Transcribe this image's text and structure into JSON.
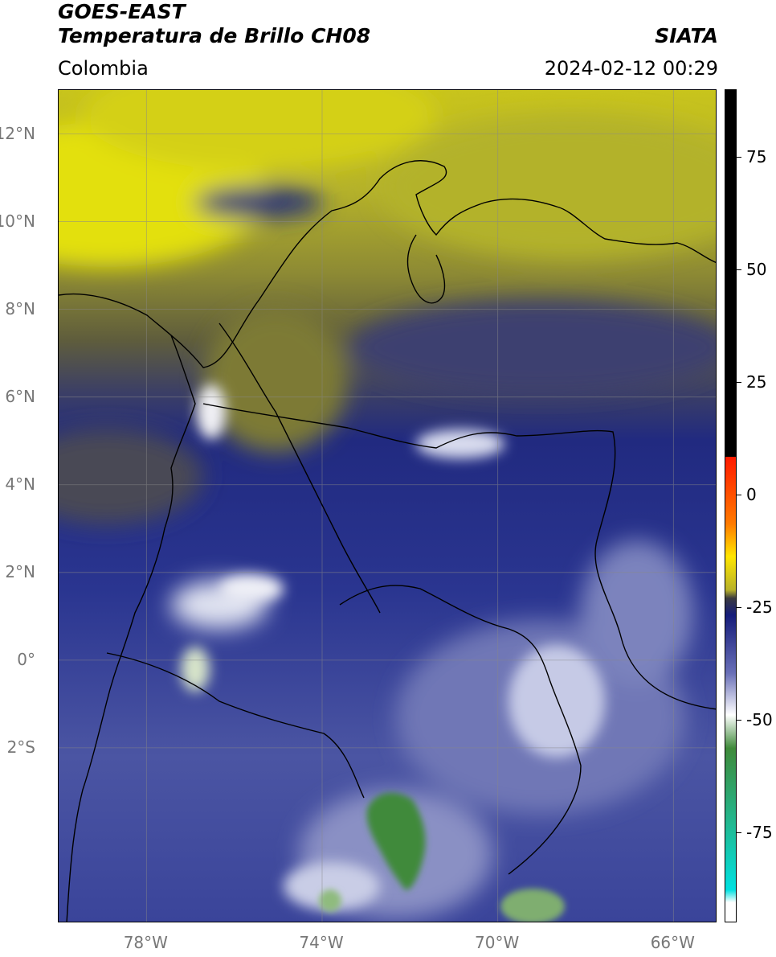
{
  "header": {
    "satellite": "GOES-EAST",
    "product": "Temperatura de Brillo CH08",
    "organization": "SIATA",
    "region": "Colombia",
    "datetime": "2024-02-12 00:29"
  },
  "map": {
    "lat_range": [
      -6,
      13
    ],
    "lon_range": [
      -80,
      -65
    ],
    "lat_ticks": [
      {
        "value": 12,
        "label": "12°N"
      },
      {
        "value": 10,
        "label": "10°N"
      },
      {
        "value": 8,
        "label": "8°N"
      },
      {
        "value": 6,
        "label": "6°N"
      },
      {
        "value": 4,
        "label": "4°N"
      },
      {
        "value": 2,
        "label": "2°N"
      },
      {
        "value": 0,
        "label": "0°"
      },
      {
        "value": -2,
        "label": "2°S"
      }
    ],
    "lon_ticks": [
      {
        "value": -78,
        "label": "78°W"
      },
      {
        "value": -74,
        "label": "74°W"
      },
      {
        "value": -70,
        "label": "70°W"
      },
      {
        "value": -66,
        "label": "66°W"
      }
    ],
    "colors": {
      "warm_yellow": "#c9c41f",
      "olive": "#6e6a32",
      "navy": "#1d2686",
      "cold_white": "#e8eaf4",
      "cold_green": "#3f8a3a"
    }
  },
  "colorbar": {
    "range": [
      -95,
      90
    ],
    "ticks": [
      {
        "value": 75,
        "label": "75"
      },
      {
        "value": 50,
        "label": "50"
      },
      {
        "value": 25,
        "label": "25"
      },
      {
        "value": 0,
        "label": "0"
      },
      {
        "value": -25,
        "label": "-25"
      },
      {
        "value": -50,
        "label": "-50"
      },
      {
        "value": -75,
        "label": "-75"
      }
    ]
  }
}
